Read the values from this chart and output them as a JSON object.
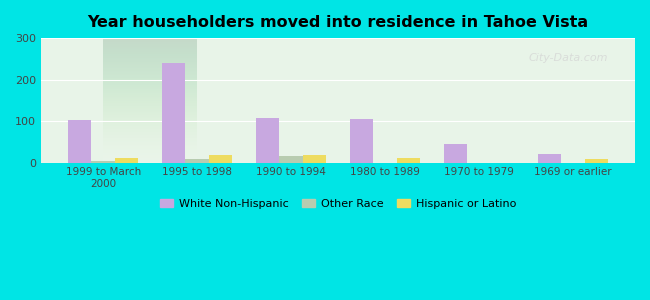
{
  "title": "Year householders moved into residence in Tahoe Vista",
  "categories": [
    "1999 to March\n2000",
    "1995 to 1998",
    "1990 to 1994",
    "1980 to 1989",
    "1970 to 1979",
    "1969 or earlier"
  ],
  "white_non_hispanic": [
    103,
    240,
    107,
    104,
    46,
    20
  ],
  "other_race": [
    5,
    9,
    15,
    0,
    0,
    0
  ],
  "hispanic_or_latino": [
    12,
    18,
    18,
    10,
    0,
    9
  ],
  "colors": {
    "white_non_hispanic": "#c8a8e0",
    "other_race": "#b8ccb0",
    "hispanic_or_latino": "#eedc60"
  },
  "background_outer": "#00e5e5",
  "background_plot_top": "#e8f4e8",
  "background_plot_bottom": "#f8f8f0",
  "ylim": [
    0,
    300
  ],
  "yticks": [
    0,
    100,
    200,
    300
  ],
  "bar_width": 0.25,
  "legend_labels": [
    "White Non-Hispanic",
    "Other Race",
    "Hispanic or Latino"
  ]
}
